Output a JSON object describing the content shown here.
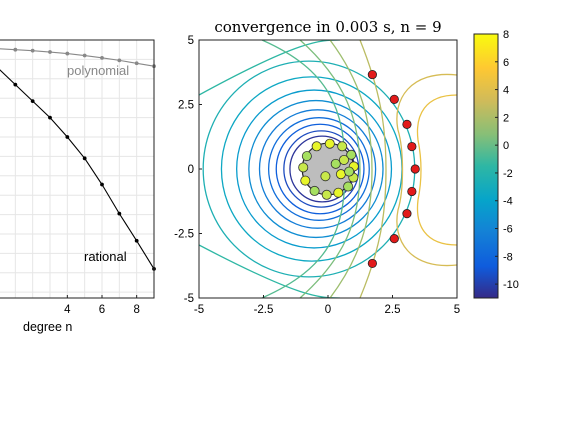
{
  "chart_data": [
    {
      "type": "line",
      "xlabel": "degree n",
      "xlim": [
        0,
        9
      ],
      "xticks": [
        "4",
        "6",
        "8"
      ],
      "grid": true,
      "series": [
        {
          "name": "polynomial",
          "color": "#888888",
          "x": [
            0,
            1,
            2,
            3,
            4,
            5,
            6,
            7,
            8,
            9
          ],
          "y": [
            -0.45,
            -0.5,
            -0.55,
            -0.62,
            -0.7,
            -0.8,
            -0.92,
            -1.05,
            -1.2,
            -1.35
          ]
        },
        {
          "name": "rational",
          "color": "#000000",
          "x": [
            0,
            1,
            2,
            3,
            4,
            5,
            6,
            7,
            8,
            9
          ],
          "y": [
            -1.45,
            -2.3,
            -3.15,
            -4.0,
            -5.0,
            -6.1,
            -7.45,
            -8.95,
            -10.35,
            -11.8
          ]
        }
      ]
    },
    {
      "type": "contour",
      "title": "convergence in 0.003 s, n = 9",
      "xlim": [
        -5,
        5
      ],
      "ylim": [
        -5,
        5
      ],
      "xticks": [
        "-5",
        "-2.5",
        "0",
        "2.5",
        "5"
      ],
      "yticks": [
        "5",
        "2.5",
        "0",
        "-2.5",
        "-5"
      ],
      "poles": [
        [
          1.72,
          3.66
        ],
        [
          2.57,
          2.7
        ],
        [
          3.06,
          1.73
        ],
        [
          3.25,
          0.87
        ],
        [
          3.38,
          0.0
        ],
        [
          3.25,
          -0.87
        ],
        [
          3.06,
          -1.73
        ],
        [
          2.57,
          -2.7
        ],
        [
          1.72,
          -3.66
        ]
      ],
      "sample_points": [
        [
          0.07,
          0.98
        ],
        [
          0.55,
          0.88
        ],
        [
          0.9,
          0.55
        ],
        [
          1.0,
          0.1
        ],
        [
          0.98,
          -0.33
        ],
        [
          0.78,
          -0.68
        ],
        [
          0.4,
          -0.92
        ],
        [
          -0.05,
          -1.0
        ],
        [
          -0.52,
          -0.85
        ],
        [
          -0.88,
          -0.45
        ],
        [
          -0.96,
          0.06
        ],
        [
          -0.82,
          0.5
        ],
        [
          -0.44,
          0.88
        ],
        [
          -0.1,
          -0.28
        ],
        [
          0.3,
          0.2
        ],
        [
          0.5,
          -0.2
        ],
        [
          0.62,
          0.35
        ],
        [
          0.82,
          -0.1
        ]
      ],
      "colorbar": {
        "range": [
          -11,
          8
        ],
        "ticks": [
          "8",
          "6",
          "4",
          "2",
          "0",
          "-2",
          "-4",
          "-6",
          "-8",
          "-10"
        ]
      }
    }
  ]
}
